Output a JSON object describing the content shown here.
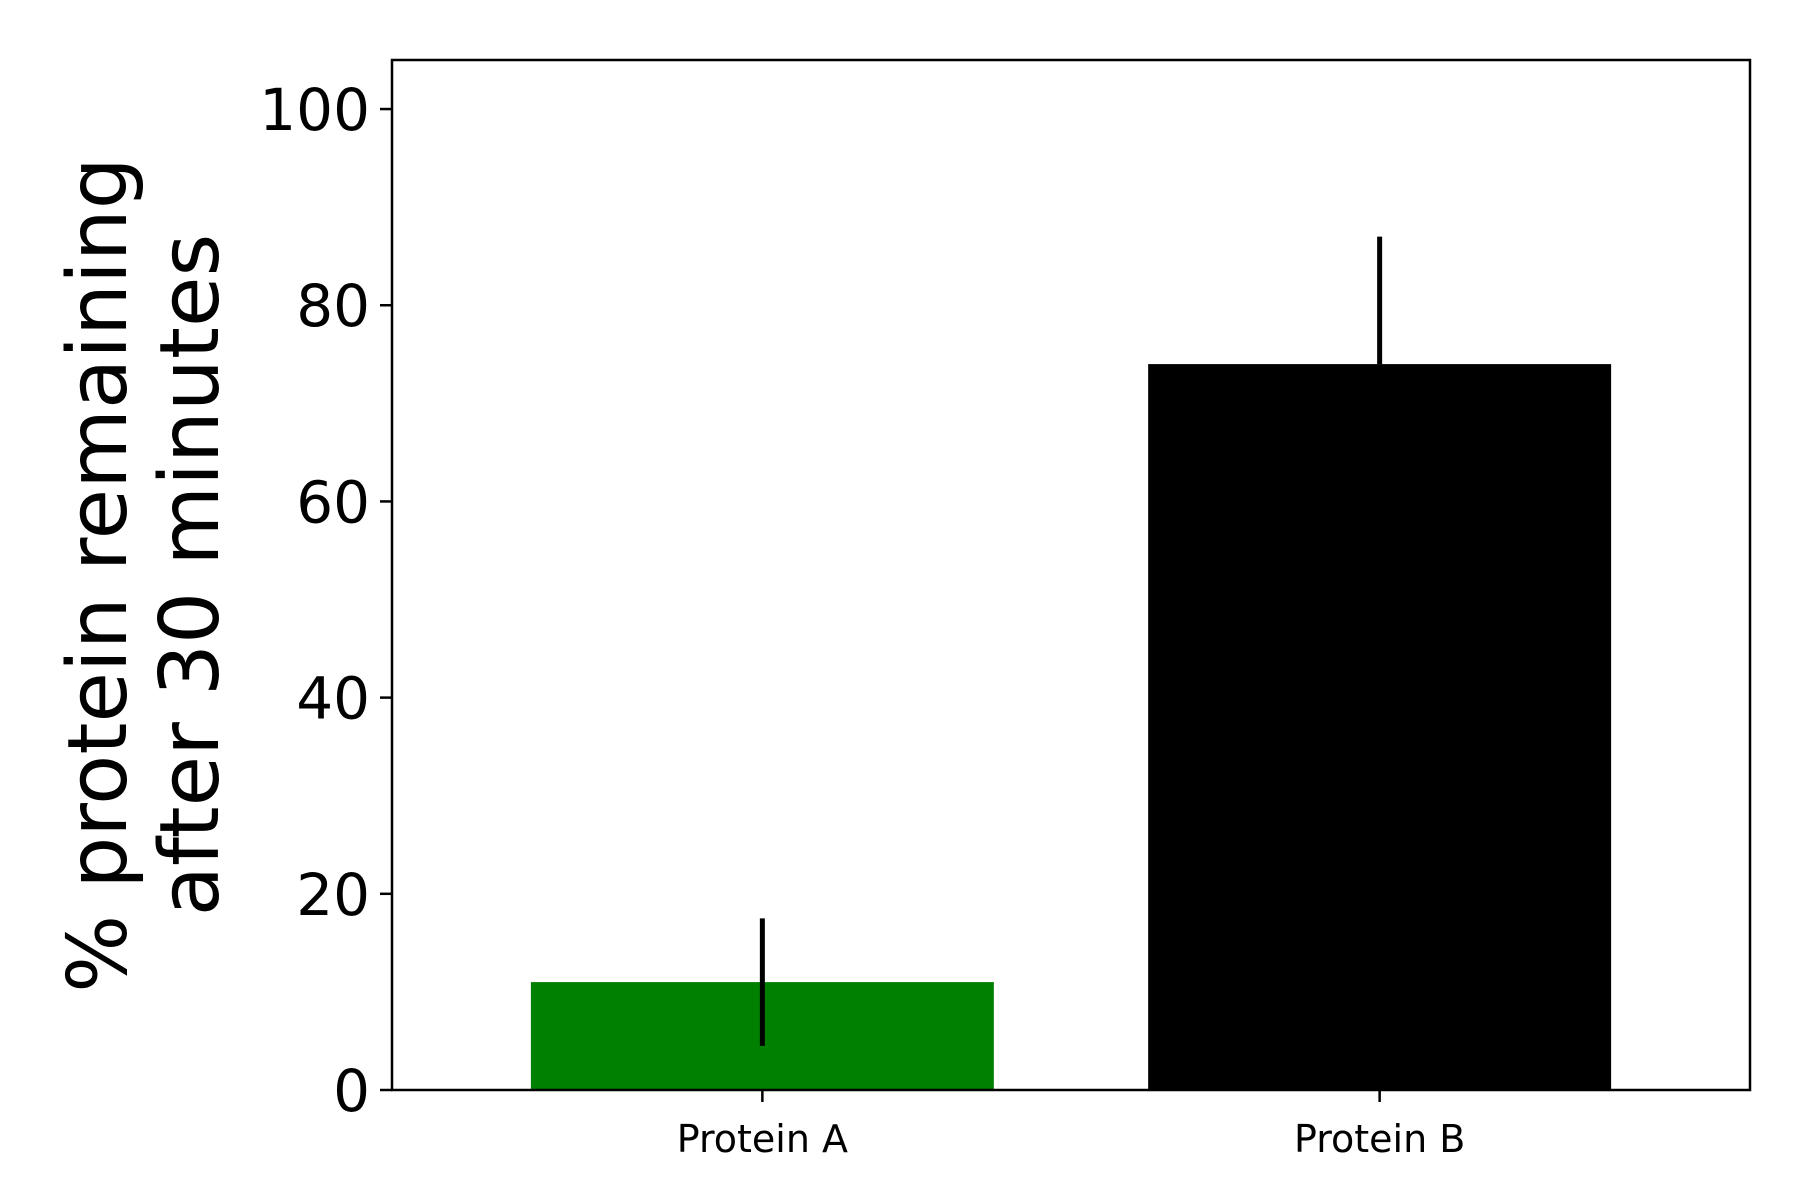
{
  "chart_data": {
    "type": "bar",
    "title": "",
    "xlabel": "",
    "ylabel_lines": [
      "% protein remaining",
      "after 30 minutes"
    ],
    "categories": [
      "Protein A",
      "Protein B"
    ],
    "values": [
      11,
      74
    ],
    "error_low": [
      4.5,
      74
    ],
    "error_high": [
      17.5,
      87
    ],
    "bar_colors": [
      "#008000",
      "#000000"
    ],
    "ylim": [
      0,
      105
    ],
    "yticks": [
      0,
      20,
      40,
      60,
      80,
      100
    ],
    "ytick_labels": [
      "0",
      "20",
      "40",
      "60",
      "80",
      "100"
    ],
    "grid": false,
    "legend": "none"
  }
}
